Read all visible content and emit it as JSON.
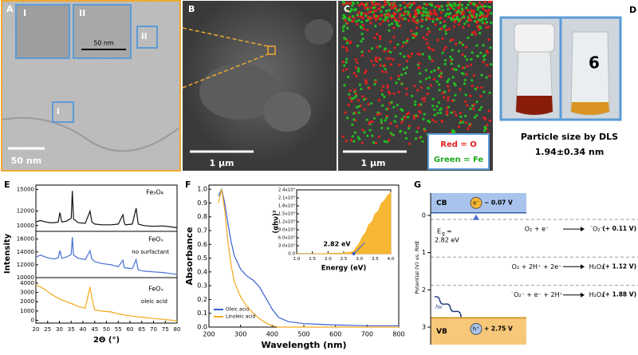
{
  "panel_labels": [
    "A",
    "B",
    "C",
    "D",
    "E",
    "F",
    "G"
  ],
  "panel_a": {
    "insets": [
      "I",
      "II",
      "ii",
      "i"
    ],
    "inset_scale": "50 nm",
    "scale": "50 nm"
  },
  "panel_b": {
    "scale": "1 µm"
  },
  "panel_c": {
    "legend": [
      "Red = O",
      "Green = Fe"
    ],
    "scale": "1 µm"
  },
  "panel_d": {
    "vial_label": "6",
    "caption": [
      "Particle size by DLS",
      "1.94±0.34 nm"
    ]
  },
  "chart_data": [
    {
      "type": "line",
      "x": [
        20,
        22,
        24,
        26,
        28,
        29.5,
        30.2,
        31,
        33,
        35,
        35.5,
        36,
        38,
        41,
        43,
        43.8,
        45,
        48,
        52,
        55,
        57,
        57.5,
        58,
        61,
        62.6,
        63.5,
        66,
        70,
        74,
        78,
        80
      ],
      "xlim": [
        20,
        80
      ],
      "ylim": [
        9200,
        15600
      ],
      "yticks": [
        10000,
        12000,
        15000
      ],
      "series": [
        {
          "name": "Fe₃O₄",
          "color": "#111111",
          "values": [
            10500,
            10700,
            10500,
            10400,
            10400,
            10500,
            11800,
            10500,
            10600,
            11000,
            14800,
            10900,
            10400,
            10300,
            12000,
            10500,
            10200,
            10100,
            10100,
            10200,
            11500,
            10500,
            10100,
            10200,
            12400,
            10200,
            10000,
            9900,
            9950,
            9800,
            9700
          ]
        }
      ]
    },
    {
      "type": "line",
      "x": [
        20,
        22,
        24,
        26,
        28,
        29.5,
        30.2,
        31,
        33,
        35,
        35.5,
        36,
        38,
        41,
        43,
        43.8,
        45,
        48,
        52,
        55,
        57,
        57.5,
        58,
        61,
        62.6,
        63.5,
        66,
        70,
        74,
        78,
        80
      ],
      "xlim": [
        20,
        80
      ],
      "ylim": [
        10000,
        17200
      ],
      "yticks": [
        10000,
        12000,
        14000,
        16000
      ],
      "ylabel": "Intensity",
      "annotation": "no surfactant",
      "series": [
        {
          "name": "FeOₓ",
          "color": "#4a6fd6",
          "values": [
            13200,
            13500,
            13200,
            13000,
            12900,
            13100,
            14200,
            13000,
            13200,
            13600,
            16300,
            13500,
            13000,
            12800,
            14200,
            12900,
            12500,
            12200,
            12000,
            11700,
            12700,
            11600,
            11500,
            11400,
            12800,
            11200,
            11000,
            10900,
            10800,
            10600,
            10500
          ]
        }
      ]
    },
    {
      "type": "line",
      "x": [
        20,
        22,
        24,
        26,
        28,
        29.5,
        30.2,
        31,
        33,
        35,
        35.5,
        36,
        38,
        41,
        43,
        43.8,
        45,
        48,
        52,
        55,
        57,
        57.5,
        58,
        61,
        62.6,
        63.5,
        66,
        70,
        74,
        78,
        80
      ],
      "xlim": [
        20,
        80
      ],
      "ylim": [
        -300,
        4600
      ],
      "yticks": [
        0,
        1000,
        2000,
        3000,
        4000
      ],
      "xticks": [
        20,
        25,
        30,
        35,
        40,
        45,
        50,
        55,
        60,
        65,
        70,
        75,
        80
      ],
      "xlabel": "2Θ (°)",
      "annotation": "oleic acid",
      "series": [
        {
          "name": "FeOₓ",
          "color": "#f4a81a",
          "values": [
            3800,
            3600,
            3300,
            2900,
            2600,
            2400,
            2300,
            2200,
            2000,
            1800,
            1800,
            1700,
            1500,
            1300,
            3600,
            2400,
            1100,
            1000,
            900,
            700,
            600,
            600,
            550,
            450,
            400,
            380,
            300,
            200,
            100,
            0,
            -50
          ]
        }
      ]
    },
    {
      "type": "line",
      "x": [
        230,
        240,
        250,
        260,
        270,
        280,
        300,
        320,
        340,
        360,
        380,
        400,
        420,
        450,
        500,
        550,
        600,
        700,
        800
      ],
      "xlim": [
        200,
        800
      ],
      "ylim": [
        0,
        1.03
      ],
      "xticks": [
        200,
        300,
        400,
        500,
        600,
        700,
        800
      ],
      "yticks": [
        {
          "value": 0,
          "label": "0.0"
        },
        0.1,
        0.2,
        0.3,
        0.4,
        0.5,
        0.6,
        0.7,
        0.8,
        0.9,
        {
          "value": 1,
          "label": "1.0"
        }
      ],
      "xlabel": "Wavelength (nm)",
      "ylabel": "Absorbance",
      "legend": "lower left",
      "series": [
        {
          "name": "Oleic acid",
          "color": "#3a5fd0",
          "values": [
            0.95,
            1.0,
            0.9,
            0.75,
            0.62,
            0.52,
            0.42,
            0.37,
            0.34,
            0.29,
            0.21,
            0.13,
            0.07,
            0.04,
            0.025,
            0.02,
            0.015,
            0.01,
            0.01
          ]
        },
        {
          "name": "Linoleic acid",
          "color": "#f4a81a",
          "values": [
            0.9,
            1.0,
            0.85,
            0.62,
            0.45,
            0.33,
            0.22,
            0.15,
            0.1,
            0.06,
            0.03,
            0.01,
            0,
            0,
            0,
            0,
            0,
            0,
            0
          ]
        }
      ]
    },
    {
      "type": "area",
      "x": [
        1,
        1.5,
        2,
        2.5,
        2.7,
        2.82,
        2.9,
        3.0,
        3.1,
        3.2,
        3.3,
        3.4,
        3.5,
        3.6,
        3.7,
        3.8,
        3.9,
        4.0
      ],
      "xlim": [
        1,
        4
      ],
      "ylim": [
        0,
        24000
      ],
      "xticks": [
        {
          "value": 1,
          "label": "1.0"
        },
        1.5,
        {
          "value": 2,
          "label": "2.0"
        },
        2.5,
        {
          "value": 3,
          "label": "3.0"
        },
        3.5,
        {
          "value": 4,
          "label": "4.0"
        }
      ],
      "yticks": [
        {
          "value": 0,
          "label": "0.0"
        },
        {
          "value": 3000,
          "label": "3.0x10³"
        },
        {
          "value": 6000,
          "label": "6.0x10³"
        },
        {
          "value": 9000,
          "label": "9.0x10³"
        },
        {
          "value": 12000,
          "label": "1.2x10⁴"
        },
        {
          "value": 15000,
          "label": "1.5x10⁴"
        },
        {
          "value": 18000,
          "label": "1.8x10⁴"
        },
        {
          "value": 21000,
          "label": "2.1x10⁴"
        },
        {
          "value": 24000,
          "label": "2.4x10⁴"
        }
      ],
      "xlabel": "Energy (eV)",
      "ylabel": "(αhν)²",
      "band_gap": {
        "value": 2.82,
        "label": "2.82 eV"
      },
      "color": "#f7b733",
      "values": [
        0,
        0,
        100,
        300,
        600,
        1000,
        2500,
        4000,
        6500,
        8000,
        11000,
        12000,
        15000,
        16000,
        19000,
        20000,
        22000,
        23000
      ]
    },
    {
      "type": "energy",
      "ylabel": "Potential (V) vs. RHE",
      "ylim": [
        -0.6,
        3.3
      ],
      "yticks": [
        0,
        1,
        2,
        3
      ],
      "cb": {
        "label": "CB",
        "carrier": "e⁻",
        "value": -0.07,
        "value_label": "− 0.07 V",
        "color": "#a9c4ec"
      },
      "vb": {
        "label": "VB",
        "carrier": "h⁺",
        "value": 2.75,
        "value_label": "+ 2.75 V",
        "color": "#f7c77a"
      },
      "gap": {
        "symbol": "E",
        "subscript": "g",
        "relation": "=",
        "value_label": "2.82 eV"
      },
      "light": "hν",
      "reactions": [
        {
          "reactant": "O₂ + e⁻",
          "product": "˙O₂⁻",
          "potential": 0.11,
          "potential_label": "(+ 0.11 V)"
        },
        {
          "reactant": "O₂ + 2H⁺ + 2e⁻",
          "product": "H₂O₂",
          "potential": 1.12,
          "potential_label": "(+ 1.12 V)"
        },
        {
          "reactant": "˙O₂⁻ + e⁻ + 2H⁺",
          "product": "H₂O₂",
          "potential": 1.88,
          "potential_label": "(+ 1.88 V)"
        }
      ]
    }
  ]
}
